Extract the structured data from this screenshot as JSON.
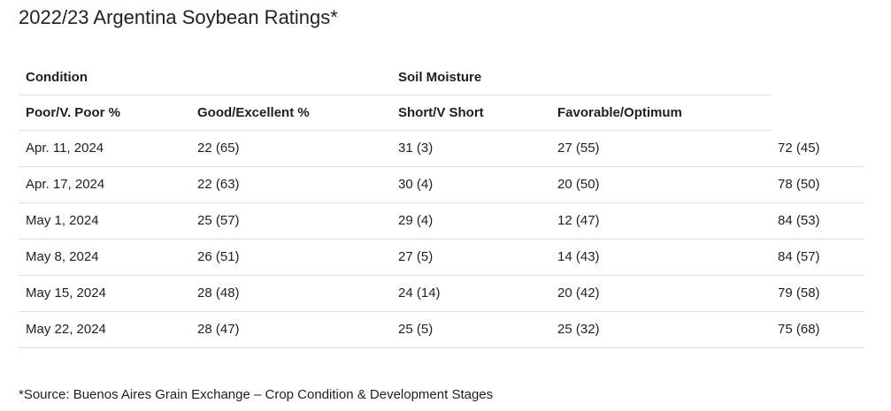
{
  "title": "2022/23 Argentina Soybean Ratings*",
  "table": {
    "group_headers": {
      "condition": "Condition",
      "soil_moisture": "Soil Moisture"
    },
    "sub_headers": [
      "Poor/V. Poor %",
      "Good/Excellent %",
      "Short/V Short",
      "Favorable/Optimum"
    ],
    "rows": [
      [
        "Apr. 11, 2024",
        "22 (65)",
        "31 (3)",
        "27 (55)",
        "72 (45)"
      ],
      [
        "Apr. 17, 2024",
        "22 (63)",
        "30 (4)",
        "20 (50)",
        "78 (50)"
      ],
      [
        "May 1, 2024",
        "25 (57)",
        "29 (4)",
        "12 (47)",
        "84 (53)"
      ],
      [
        "May 8, 2024",
        "26 (51)",
        "27 (5)",
        "14 (43)",
        "84 (57)"
      ],
      [
        "May 15, 2024",
        "28 (48)",
        "24 (14)",
        "20 (42)",
        "79 (58)"
      ],
      [
        "May 22, 2024",
        "28 (47)",
        "25 (5)",
        "25 (32)",
        "75 (68)"
      ]
    ]
  },
  "footnote": "*Source: Buenos Aires Grain Exchange – Crop Condition & Development Stages"
}
